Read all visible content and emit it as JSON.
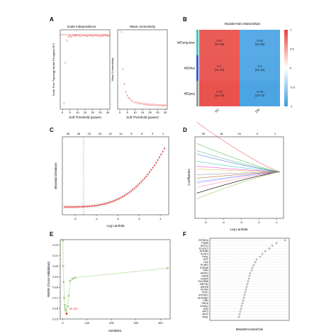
{
  "panels": {
    "A": {
      "label": "A",
      "left": {
        "title": "Scale independence",
        "xlabel": "Soft Threshold (power)",
        "ylabel": "Scale Free Topology Model Fit,signed R^2",
        "xticks": [
          "0",
          "5",
          "10",
          "15",
          "20",
          "25",
          "30"
        ],
        "points": [
          {
            "x": 1,
            "y": 0.05,
            "t": "1"
          },
          {
            "x": 2,
            "y": 0.6,
            "t": "2"
          },
          {
            "x": 3,
            "y": 0.9,
            "t": "3"
          },
          {
            "x": 4,
            "y": 0.95,
            "t": "4"
          },
          {
            "x": 5,
            "y": 0.96,
            "t": "5"
          },
          {
            "x": 6,
            "y": 0.95,
            "t": "6"
          },
          {
            "x": 7,
            "y": 0.96,
            "t": "7"
          },
          {
            "x": 8,
            "y": 0.97,
            "t": "8"
          },
          {
            "x": 9,
            "y": 0.96,
            "t": "9"
          },
          {
            "x": 10,
            "y": 0.97,
            "t": "10"
          },
          {
            "x": 12,
            "y": 0.96,
            "t": "12"
          },
          {
            "x": 14,
            "y": 0.97,
            "t": "14"
          },
          {
            "x": 16,
            "y": 0.96,
            "t": "16"
          },
          {
            "x": 18,
            "y": 0.97,
            "t": "18"
          },
          {
            "x": 20,
            "y": 0.96,
            "t": "20"
          },
          {
            "x": 22,
            "y": 0.97,
            "t": "22"
          },
          {
            "x": 24,
            "y": 0.96,
            "t": "24"
          },
          {
            "x": 26,
            "y": 0.96,
            "t": "26"
          },
          {
            "x": 28,
            "y": 0.97,
            "t": "28"
          },
          {
            "x": 30,
            "y": 0.96,
            "t": "30"
          }
        ]
      },
      "right": {
        "title": "Mean connectivity",
        "xlabel": "Soft Threshold (power)",
        "ylabel": "Mean Connectivity",
        "xticks": [
          "0",
          "5",
          "10",
          "15",
          "20",
          "25",
          "30"
        ],
        "points": [
          {
            "x": 1,
            "y": 1.0,
            "t": "1"
          },
          {
            "x": 2,
            "y": 0.5,
            "t": "2"
          },
          {
            "x": 3,
            "y": 0.3,
            "t": "3"
          },
          {
            "x": 4,
            "y": 0.2,
            "t": "4"
          },
          {
            "x": 5,
            "y": 0.15,
            "t": "5"
          },
          {
            "x": 6,
            "y": 0.12,
            "t": "6"
          },
          {
            "x": 7,
            "y": 0.1,
            "t": "7"
          },
          {
            "x": 8,
            "y": 0.08,
            "t": "8"
          },
          {
            "x": 10,
            "y": 0.06,
            "t": "10"
          },
          {
            "x": 12,
            "y": 0.05,
            "t": "12"
          },
          {
            "x": 14,
            "y": 0.045,
            "t": "14"
          },
          {
            "x": 16,
            "y": 0.04,
            "t": "16"
          },
          {
            "x": 18,
            "y": 0.035,
            "t": "18"
          },
          {
            "x": 20,
            "y": 0.03,
            "t": "20"
          },
          {
            "x": 22,
            "y": 0.03,
            "t": "22"
          },
          {
            "x": 24,
            "y": 0.025,
            "t": "24"
          },
          {
            "x": 26,
            "y": 0.025,
            "t": "26"
          },
          {
            "x": 28,
            "y": 0.02,
            "t": "28"
          },
          {
            "x": 30,
            "y": 0.02,
            "t": "30"
          }
        ]
      }
    },
    "B": {
      "label": "B",
      "title": "Module-trait relationships",
      "rows": [
        "MEturquoise",
        "MEblue",
        "MEgrey"
      ],
      "cols": [
        "PC",
        "DN"
      ],
      "cells": [
        [
          {
            "v": "0.67",
            "p": "(3e-09)",
            "val": 0.67
          },
          {
            "v": "-0.67",
            "p": "(3e-09)",
            "val": -0.67
          }
        ],
        [
          {
            "v": "0.7",
            "p": "(2e-10)",
            "val": 0.7
          },
          {
            "v": "-0.7",
            "p": "(2e-10)",
            "val": -0.7
          }
        ],
        [
          {
            "v": "0.79",
            "p": "(1e-13)",
            "val": 0.79
          },
          {
            "v": "-0.79",
            "p": "(1e-13)",
            "val": -0.79
          }
        ]
      ],
      "row_colors": [
        "#3cc8c0",
        "#3a5fd8",
        "#9a9a9a"
      ],
      "scale_ticks": [
        "1",
        "0.5",
        "0",
        "-0.5",
        "-1"
      ],
      "positive_color": "#e8403a",
      "negative_color": "#3a9be0"
    },
    "C": {
      "label": "C",
      "xlabel": "Log Lambda",
      "ylabel": "Binomial Deviance",
      "top_ticks": [
        "26",
        "26",
        "23",
        "23",
        "19",
        "14",
        "9",
        "6",
        "3",
        "1"
      ],
      "xticks": [
        "-5",
        "-4",
        "-3",
        "-2",
        "-1"
      ],
      "xlim": [
        -5.6,
        -0.6
      ],
      "ylim": [
        0.8,
        1.4
      ]
    },
    "D": {
      "label": "D",
      "xlabel": "Log Lambda",
      "ylabel": "Coefficients",
      "top_ticks": [
        "25",
        "18",
        "15",
        "9",
        "1"
      ],
      "xticks": [
        "-5",
        "-4",
        "-3",
        "-2",
        "-1"
      ],
      "xlim": [
        -5.6,
        -0.6
      ],
      "ylim": [
        -1.0,
        1.0
      ]
    },
    "E": {
      "label": "E",
      "xlabel": "Variables",
      "ylabel": "RMSE (Cross-Validation)",
      "yticks": [
        "0.15",
        "0.16",
        "0.17",
        "0.18",
        "0.19",
        "0.20",
        "0.21",
        "0.22"
      ],
      "xticks": [
        "0",
        "100",
        "200",
        "300",
        "400"
      ],
      "annotation": "N=16",
      "points": [
        {
          "x": 1,
          "y": 0.224
        },
        {
          "x": 2,
          "y": 0.2
        },
        {
          "x": 4,
          "y": 0.185
        },
        {
          "x": 6,
          "y": 0.17
        },
        {
          "x": 8,
          "y": 0.163
        },
        {
          "x": 10,
          "y": 0.16
        },
        {
          "x": 12,
          "y": 0.158
        },
        {
          "x": 16,
          "y": 0.155
        },
        {
          "x": 20,
          "y": 0.162
        },
        {
          "x": 25,
          "y": 0.172
        },
        {
          "x": 30,
          "y": 0.186
        },
        {
          "x": 40,
          "y": 0.188
        },
        {
          "x": 50,
          "y": 0.189
        },
        {
          "x": 430,
          "y": 0.198
        }
      ]
    },
    "F": {
      "label": "F",
      "xlabel": "MeanDecreaseGini",
      "genes": [
        "EIF4E1A",
        "PGM5",
        "GSTO1",
        "PLXDC2",
        "ATP2B4",
        "ACSL4",
        "PFKL",
        "AGT",
        "CA2",
        "PCBP2",
        "S100A6",
        "FMO",
        "ANXA1",
        "GNAS",
        "CASP3",
        "SLC25A5",
        "ZNF292",
        "ADH1B",
        "ACSS2",
        "PDK1",
        "MTHFD1",
        "ALDH9A1",
        "CIB1",
        "PNCK",
        "KCNQ1",
        "HSD",
        "RPL5",
        "MIOX",
        "FRHL"
      ],
      "values": [
        1.0,
        0.88,
        0.82,
        0.78,
        0.72,
        0.68,
        0.65,
        0.6,
        0.58,
        0.56,
        0.54,
        0.53,
        0.51,
        0.5,
        0.49,
        0.48,
        0.47,
        0.46,
        0.45,
        0.44,
        0.43,
        0.42,
        0.41,
        0.4,
        0.39,
        0.38,
        0.37,
        0.36,
        0.35
      ]
    }
  }
}
